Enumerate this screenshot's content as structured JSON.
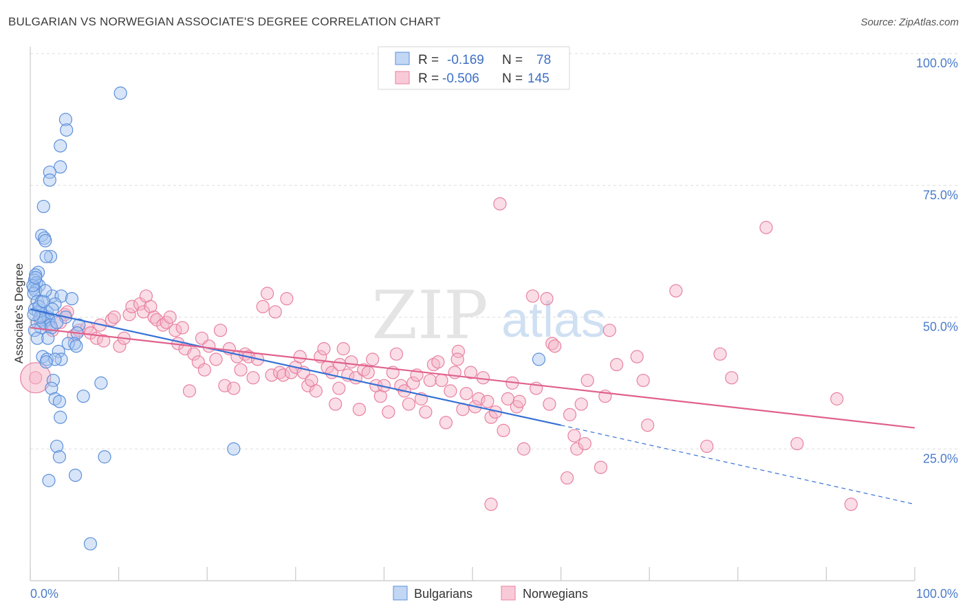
{
  "title": "BULGARIAN VS NORWEGIAN ASSOCIATE'S DEGREE CORRELATION CHART",
  "source": "Source: ZipAtlas.com",
  "colors": {
    "blue_fill": "#a8c6f0",
    "blue_stroke": "#5b8fdb",
    "blue_line": "#3570d4",
    "pink_fill": "#f5b3c8",
    "pink_stroke": "#e8809f",
    "pink_line": "#e0608c",
    "tick": "#4a7cc9",
    "grid": "#dddddd"
  },
  "chart_data": {
    "type": "scatter",
    "ylabel": "Associate's Degree",
    "xlim": [
      0,
      100
    ],
    "ylim": [
      0,
      100
    ],
    "x_tick_labels": [
      "0.0%",
      "100.0%"
    ],
    "y_ticks": [
      {
        "value": 25,
        "label": "25.0%"
      },
      {
        "value": 50,
        "label": "50.0%"
      },
      {
        "value": 75,
        "label": "75.0%"
      },
      {
        "value": 100,
        "label": "100.0%"
      }
    ],
    "legend": [
      {
        "r_label": "R =",
        "r_value": "-0.169",
        "n_label": "N =",
        "n_value": "78"
      },
      {
        "r_label": "R =",
        "r_value": "-0.506",
        "n_label": "N =",
        "n_value": "145"
      }
    ],
    "series": [
      {
        "name": "Bulgarians",
        "trend": {
          "x0": 0,
          "y0": 51.5,
          "x1": 60,
          "y1": 29.5,
          "dash_x1": 100,
          "dash_y1": 14.5
        },
        "points": [
          [
            10.2,
            92.5
          ],
          [
            4.0,
            87.5
          ],
          [
            4.1,
            85.5
          ],
          [
            3.4,
            82.5
          ],
          [
            3.4,
            78.5
          ],
          [
            2.2,
            77.5
          ],
          [
            2.2,
            76.0
          ],
          [
            1.5,
            71.0
          ],
          [
            1.3,
            65.5
          ],
          [
            1.6,
            65.0
          ],
          [
            1.7,
            64.5
          ],
          [
            2.3,
            61.5
          ],
          [
            1.8,
            61.5
          ],
          [
            0.9,
            58.5
          ],
          [
            0.6,
            58.0
          ],
          [
            0.5,
            57.0
          ],
          [
            0.7,
            56.5
          ],
          [
            1.0,
            56.0
          ],
          [
            0.4,
            55.5
          ],
          [
            0.6,
            55.0
          ],
          [
            0.4,
            54.5
          ],
          [
            2.5,
            54.0
          ],
          [
            3.5,
            54.0
          ],
          [
            4.7,
            53.5
          ],
          [
            0.8,
            53.0
          ],
          [
            1.3,
            53.0
          ],
          [
            2.8,
            52.5
          ],
          [
            0.5,
            51.5
          ],
          [
            0.9,
            51.0
          ],
          [
            1.9,
            51.0
          ],
          [
            1.4,
            50.5
          ],
          [
            2.0,
            50.0
          ],
          [
            4.0,
            50.0
          ],
          [
            1.6,
            49.5
          ],
          [
            2.1,
            49.5
          ],
          [
            0.8,
            49.0
          ],
          [
            1.5,
            49.0
          ],
          [
            2.3,
            48.5
          ],
          [
            5.5,
            48.5
          ],
          [
            1.2,
            48.0
          ],
          [
            2.4,
            48.0
          ],
          [
            0.5,
            47.5
          ],
          [
            5.3,
            47.0
          ],
          [
            0.8,
            46.0
          ],
          [
            5.0,
            45.0
          ],
          [
            4.3,
            45.0
          ],
          [
            5.2,
            44.5
          ],
          [
            3.2,
            43.5
          ],
          [
            1.4,
            42.5
          ],
          [
            1.9,
            42.0
          ],
          [
            3.5,
            42.0
          ],
          [
            2.8,
            42.0
          ],
          [
            1.8,
            41.5
          ],
          [
            57.5,
            42.0
          ],
          [
            2.6,
            38.0
          ],
          [
            8.0,
            37.5
          ],
          [
            2.4,
            36.5
          ],
          [
            6.0,
            35.0
          ],
          [
            2.8,
            34.5
          ],
          [
            3.3,
            34.0
          ],
          [
            3.4,
            31.0
          ],
          [
            3.0,
            25.5
          ],
          [
            23.0,
            25.0
          ],
          [
            3.3,
            23.5
          ],
          [
            8.4,
            23.5
          ],
          [
            5.1,
            20.0
          ],
          [
            2.1,
            19.0
          ],
          [
            6.8,
            7.0
          ],
          [
            1.0,
            52.0
          ],
          [
            1.1,
            50.0
          ],
          [
            2.0,
            46.0
          ],
          [
            0.3,
            56.0
          ],
          [
            0.6,
            57.5
          ],
          [
            1.5,
            53.0
          ],
          [
            1.7,
            55.0
          ],
          [
            2.5,
            51.5
          ],
          [
            3.0,
            49.0
          ],
          [
            0.4,
            50.5
          ]
        ]
      },
      {
        "name": "Norwegians",
        "trend": {
          "x0": 0,
          "y0": 48.0,
          "x1": 100,
          "y1": 29.0
        },
        "points": [
          [
            0.6,
            38.5
          ],
          [
            1.1,
            49.5
          ],
          [
            1.8,
            48.5
          ],
          [
            2.5,
            47.5
          ],
          [
            3.4,
            49.0
          ],
          [
            3.9,
            50.5
          ],
          [
            4.2,
            51.0
          ],
          [
            4.9,
            46.5
          ],
          [
            5.5,
            47.5
          ],
          [
            6.4,
            48.0
          ],
          [
            6.8,
            47.0
          ],
          [
            7.5,
            46.0
          ],
          [
            7.9,
            48.5
          ],
          [
            8.3,
            45.5
          ],
          [
            9.2,
            49.5
          ],
          [
            9.5,
            50.0
          ],
          [
            10.1,
            44.5
          ],
          [
            10.6,
            46.0
          ],
          [
            11.2,
            50.5
          ],
          [
            11.5,
            52.0
          ],
          [
            12.4,
            52.5
          ],
          [
            12.8,
            51.0
          ],
          [
            13.1,
            54.0
          ],
          [
            13.6,
            52.0
          ],
          [
            14.0,
            50.0
          ],
          [
            14.3,
            49.5
          ],
          [
            15.0,
            48.5
          ],
          [
            15.4,
            49.0
          ],
          [
            15.8,
            50.0
          ],
          [
            16.4,
            47.5
          ],
          [
            16.7,
            45.0
          ],
          [
            17.2,
            48.0
          ],
          [
            17.5,
            44.0
          ],
          [
            18.0,
            36.0
          ],
          [
            18.5,
            43.0
          ],
          [
            19.0,
            41.5
          ],
          [
            19.4,
            46.0
          ],
          [
            19.7,
            40.0
          ],
          [
            20.2,
            44.5
          ],
          [
            21.0,
            42.0
          ],
          [
            21.5,
            47.5
          ],
          [
            22.0,
            37.0
          ],
          [
            22.5,
            44.0
          ],
          [
            23.0,
            36.5
          ],
          [
            23.4,
            42.5
          ],
          [
            23.8,
            40.0
          ],
          [
            24.3,
            43.0
          ],
          [
            24.7,
            42.5
          ],
          [
            25.2,
            38.5
          ],
          [
            25.7,
            42.0
          ],
          [
            26.3,
            52.0
          ],
          [
            26.8,
            54.5
          ],
          [
            27.3,
            39.0
          ],
          [
            27.7,
            51.0
          ],
          [
            28.2,
            39.5
          ],
          [
            28.6,
            39.0
          ],
          [
            29.0,
            53.5
          ],
          [
            29.5,
            39.5
          ],
          [
            30.0,
            40.5
          ],
          [
            30.5,
            42.5
          ],
          [
            30.9,
            39.5
          ],
          [
            31.4,
            37.0
          ],
          [
            31.8,
            38.0
          ],
          [
            32.3,
            36.0
          ],
          [
            32.8,
            42.5
          ],
          [
            33.2,
            44.0
          ],
          [
            33.6,
            40.5
          ],
          [
            34.1,
            39.5
          ],
          [
            34.5,
            33.5
          ],
          [
            35.0,
            41.0
          ],
          [
            35.4,
            44.0
          ],
          [
            35.9,
            39.0
          ],
          [
            36.3,
            41.5
          ],
          [
            36.8,
            38.5
          ],
          [
            37.2,
            32.5
          ],
          [
            37.7,
            40.0
          ],
          [
            38.2,
            39.5
          ],
          [
            38.7,
            42.0
          ],
          [
            39.1,
            37.0
          ],
          [
            39.6,
            35.0
          ],
          [
            40.0,
            37.0
          ],
          [
            40.5,
            32.0
          ],
          [
            41.0,
            39.5
          ],
          [
            41.4,
            43.0
          ],
          [
            41.9,
            37.0
          ],
          [
            42.3,
            36.0
          ],
          [
            42.8,
            33.5
          ],
          [
            43.3,
            37.5
          ],
          [
            43.7,
            39.0
          ],
          [
            44.2,
            34.5
          ],
          [
            44.7,
            32.0
          ],
          [
            45.2,
            38.0
          ],
          [
            45.6,
            41.0
          ],
          [
            46.1,
            41.5
          ],
          [
            46.5,
            38.0
          ],
          [
            47.0,
            30.0
          ],
          [
            47.5,
            36.0
          ],
          [
            48.0,
            39.5
          ],
          [
            48.4,
            43.5
          ],
          [
            48.9,
            32.5
          ],
          [
            49.3,
            35.5
          ],
          [
            49.8,
            39.5
          ],
          [
            50.3,
            33.0
          ],
          [
            50.7,
            34.5
          ],
          [
            51.2,
            38.5
          ],
          [
            51.7,
            34.0
          ],
          [
            52.1,
            31.0
          ],
          [
            52.6,
            32.0
          ],
          [
            53.1,
            71.5
          ],
          [
            53.5,
            28.5
          ],
          [
            54.0,
            34.5
          ],
          [
            54.5,
            37.5
          ],
          [
            55.0,
            33.0
          ],
          [
            55.3,
            34.0
          ],
          [
            55.8,
            25.0
          ],
          [
            56.8,
            54.0
          ],
          [
            57.2,
            36.5
          ],
          [
            58.4,
            53.5
          ],
          [
            59.0,
            45.0
          ],
          [
            59.3,
            44.5
          ],
          [
            60.7,
            19.5
          ],
          [
            61.0,
            31.5
          ],
          [
            61.5,
            27.5
          ],
          [
            61.8,
            25.0
          ],
          [
            62.3,
            33.5
          ],
          [
            62.7,
            26.0
          ],
          [
            63.0,
            38.0
          ],
          [
            64.5,
            21.5
          ],
          [
            65.0,
            35.0
          ],
          [
            65.5,
            47.5
          ],
          [
            66.3,
            41.0
          ],
          [
            68.6,
            42.5
          ],
          [
            69.3,
            38.0
          ],
          [
            69.8,
            29.5
          ],
          [
            73.0,
            55.0
          ],
          [
            76.5,
            25.5
          ],
          [
            78.0,
            43.0
          ],
          [
            79.3,
            38.5
          ],
          [
            83.2,
            67.0
          ],
          [
            86.7,
            26.0
          ],
          [
            91.2,
            34.5
          ],
          [
            92.8,
            14.5
          ],
          [
            52.1,
            14.5
          ],
          [
            48.3,
            42.0
          ],
          [
            34.9,
            36.5
          ],
          [
            58.7,
            33.5
          ]
        ]
      }
    ]
  },
  "bottom_legend": [
    "Bulgarians",
    "Norwegians"
  ],
  "watermark": {
    "zip": "ZIP",
    "atlas": "atlas"
  }
}
